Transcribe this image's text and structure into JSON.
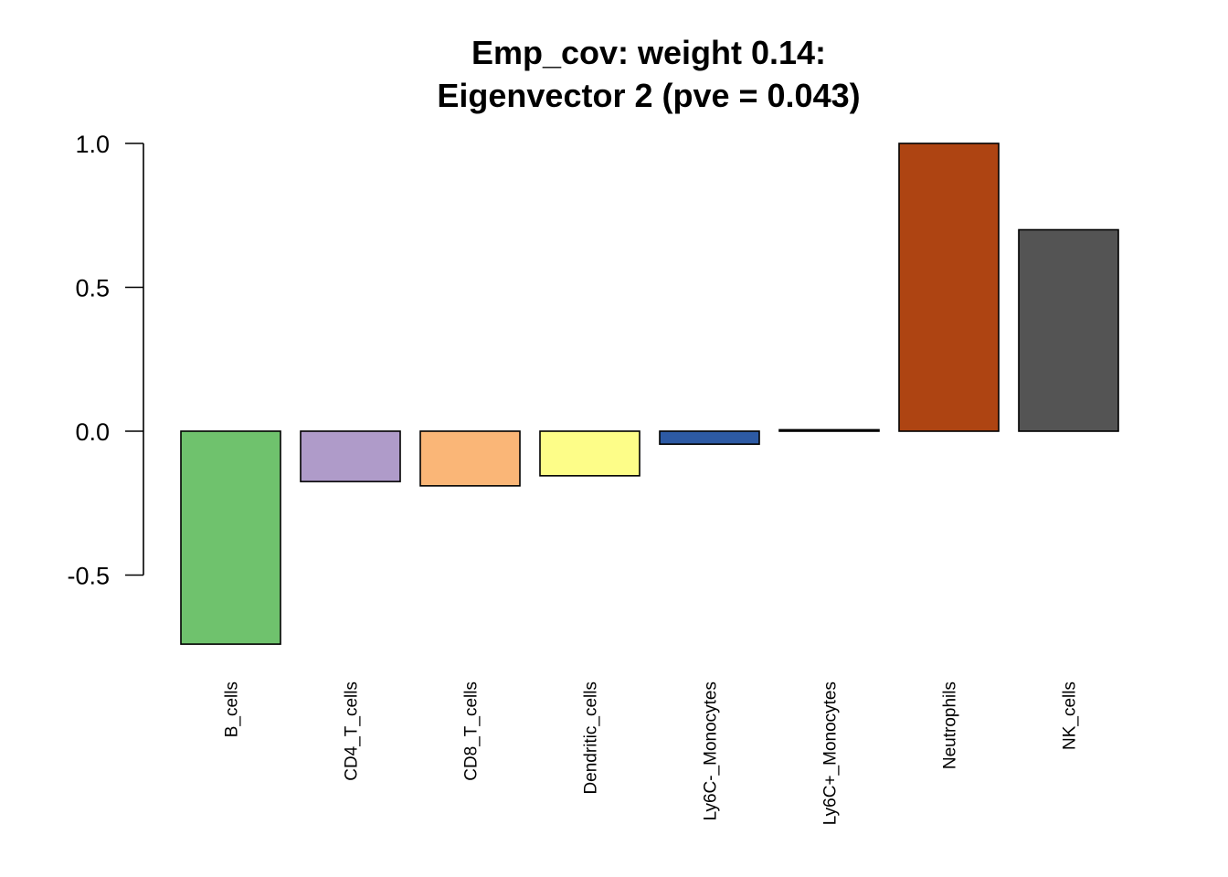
{
  "chart_data": {
    "type": "bar",
    "title_line1": "Emp_cov: weight 0.14:",
    "title_line2": "Eigenvector 2 (pve = 0.043)",
    "xlabel": "",
    "ylabel": "",
    "ylim": [
      -0.75,
      1.0
    ],
    "y_ticks": [
      {
        "value": 1.0,
        "label": "1.0"
      },
      {
        "value": 0.5,
        "label": "0.5"
      },
      {
        "value": 0.0,
        "label": "0.0"
      },
      {
        "value": -0.5,
        "label": "-0.5"
      }
    ],
    "grid": false,
    "legend": "none",
    "categories": [
      "B_cells",
      "CD4_T_cells",
      "CD8_T_cells",
      "Dendritic_cells",
      "Ly6C-_Monocytes",
      "Ly6C+_Monocytes",
      "Neutrophils",
      "NK_cells"
    ],
    "values": [
      -0.74,
      -0.175,
      -0.19,
      -0.155,
      -0.045,
      0.005,
      1.0,
      0.7
    ],
    "colors": [
      "#6FC26D",
      "#AF9BC9",
      "#FAB677",
      "#FDFD88",
      "#2D5AA4",
      "#E21F82",
      "#AE4412",
      "#545454"
    ]
  }
}
